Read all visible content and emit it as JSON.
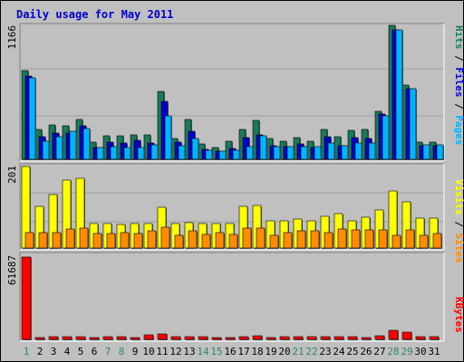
{
  "chart_data": {
    "type": "bar",
    "title": "Daily usage for May 2011",
    "categories": [
      "1",
      "2",
      "3",
      "4",
      "5",
      "6",
      "7",
      "8",
      "9",
      "10",
      "11",
      "12",
      "13",
      "14",
      "15",
      "16",
      "17",
      "18",
      "19",
      "20",
      "21",
      "22",
      "23",
      "24",
      "25",
      "26",
      "27",
      "28",
      "29",
      "30",
      "31"
    ],
    "weekend_days": [
      "1",
      "7",
      "8",
      "14",
      "15",
      "21",
      "22",
      "28",
      "29"
    ],
    "panels": [
      {
        "id": "hits-files-pages",
        "max_label": "1166",
        "ymax": 1166,
        "legend": [
          "Pages",
          "Files",
          "Hits"
        ],
        "series": [
          {
            "name": "Hits",
            "color": "#1a7a5a",
            "values": [
              775,
              263,
              302,
              292,
              345,
              148,
              204,
              204,
              211,
              211,
              592,
              184,
              344,
              133,
              104,
              154,
              262,
              335,
              178,
              156,
              186,
              158,
              261,
              195,
              252,
              257,
              417,
              1166,
              648,
              149,
              149
            ]
          },
          {
            "name": "Files",
            "color": "#0000cc",
            "values": [
              723,
              199,
              229,
              230,
              288,
              102,
              148,
              138,
              165,
              140,
              508,
              148,
              246,
              84,
              71,
              94,
              189,
              212,
              120,
              108,
              133,
              106,
              196,
              122,
              186,
              183,
              390,
              1130,
              612,
              119,
              119
            ]
          },
          {
            "name": "Pages",
            "color": "#00b4ff",
            "values": [
              710,
              160,
              200,
              241,
              271,
              100,
              107,
              101,
              105,
              123,
              380,
              120,
              180,
              80,
              70,
              80,
              110,
              208,
              110,
              110,
              110,
              107,
              140,
              119,
              140,
              141,
              380,
              1130,
              616,
              124,
              124
            ]
          }
        ]
      },
      {
        "id": "visits-sites",
        "max_label": "201",
        "ymax": 201,
        "legend": [
          "Sites",
          "Visits"
        ],
        "series": [
          {
            "name": "Visits",
            "color": "#ffff00",
            "values": [
              201,
              103,
              132,
              167,
              172,
              60,
              60,
              58,
              60,
              60,
              100,
              60,
              62,
              60,
              60,
              60,
              102,
              104,
              68,
              68,
              72,
              68,
              78,
              84,
              68,
              77,
              94,
              140,
              114,
              74,
              74
            ]
          },
          {
            "name": "Sites",
            "color": "#ff8c00",
            "values": [
              38,
              37,
              38,
              48,
              50,
              35,
              36,
              38,
              36,
              42,
              52,
              32,
              42,
              33,
              38,
              34,
              50,
              50,
              32,
              38,
              42,
              42,
              37,
              48,
              44,
              44,
              44,
              31,
              44,
              32,
              35
            ]
          }
        ]
      },
      {
        "id": "kbytes",
        "max_label": "61687",
        "ymax": 61687,
        "legend": [
          "KBytes"
        ],
        "series": [
          {
            "name": "KBytes",
            "color": "#ff0000",
            "values": [
              61687,
              1200,
              1800,
              2200,
              1900,
              1500,
              2300,
              1700,
              1500,
              3500,
              4400,
              1700,
              2000,
              1900,
              1500,
              1200,
              1900,
              2800,
              1100,
              1800,
              1900,
              1800,
              2100,
              1800,
              2000,
              1600,
              2400,
              6800,
              5400,
              2000,
              2200
            ]
          }
        ]
      }
    ]
  }
}
